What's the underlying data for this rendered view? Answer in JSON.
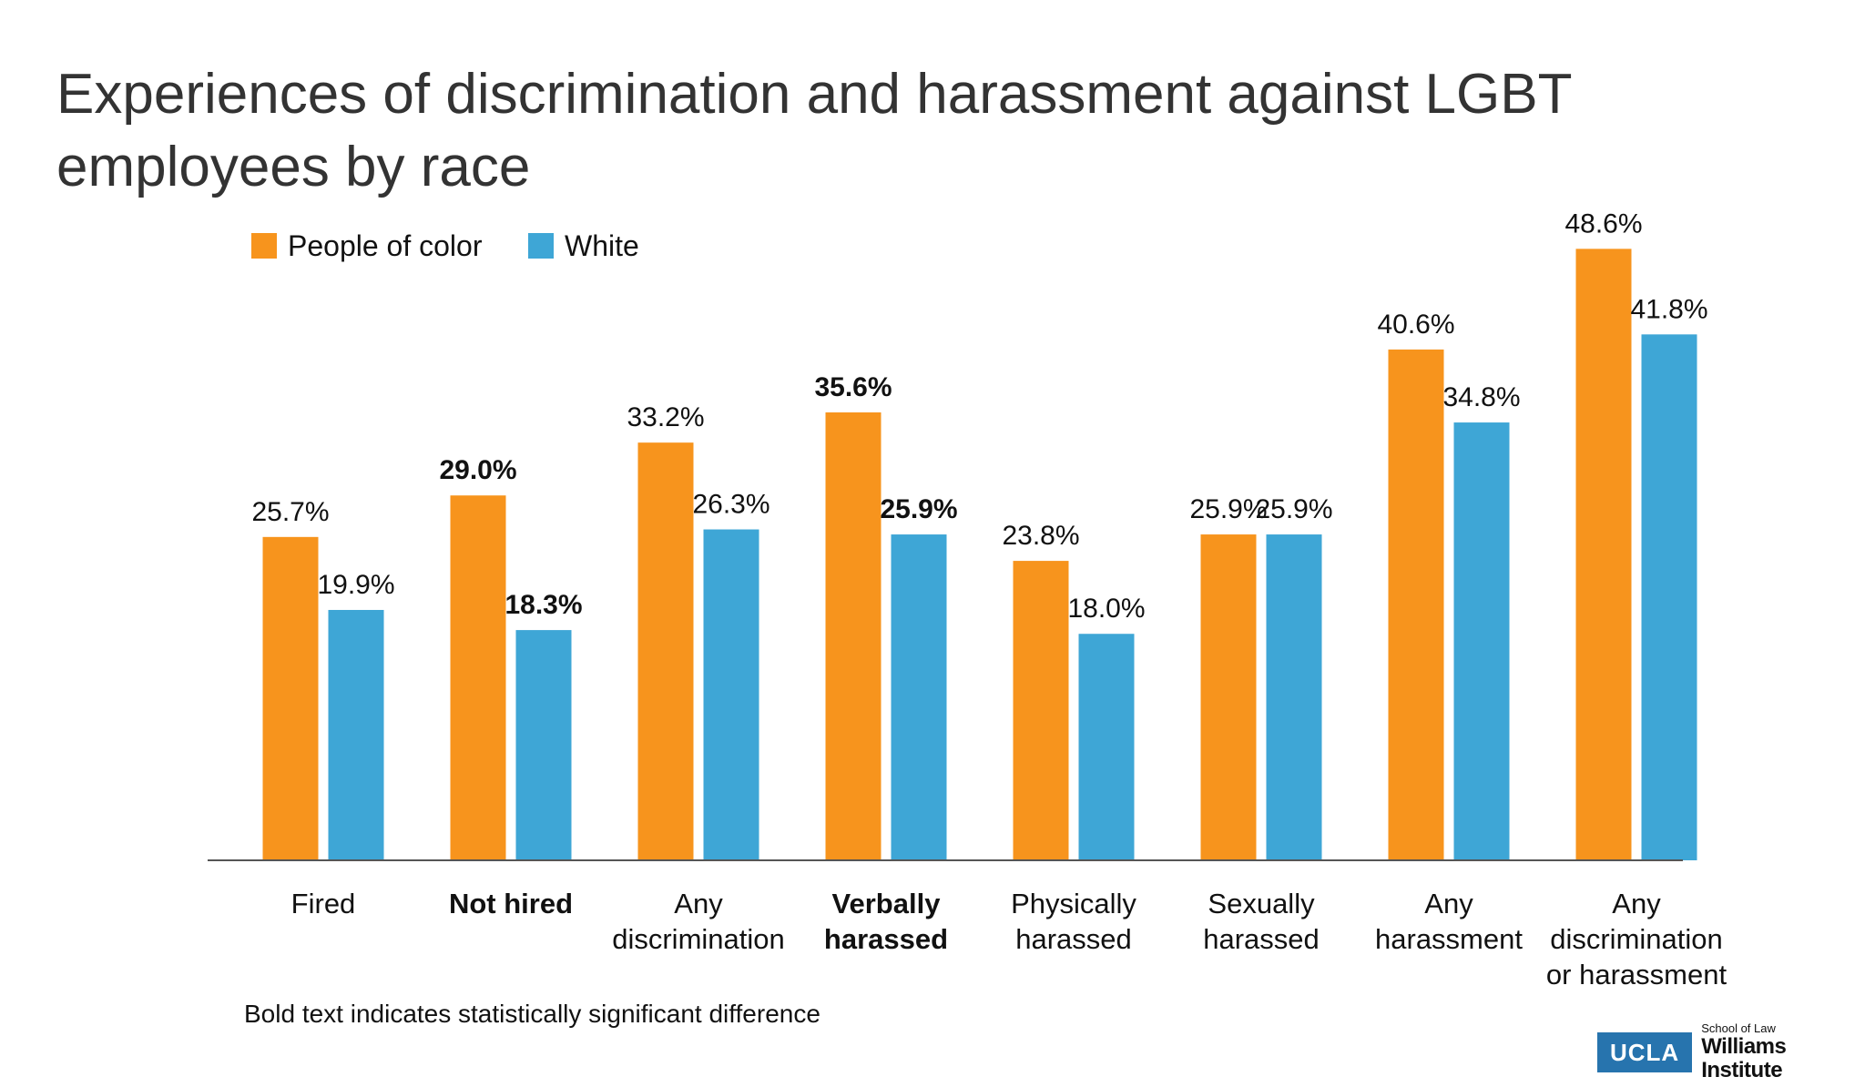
{
  "chart_data": {
    "type": "bar",
    "title": "Experiences of discrimination and harassment against LGBT employees by race",
    "categories": [
      [
        "Fired"
      ],
      [
        "Not hired"
      ],
      [
        "Any",
        "discrimination"
      ],
      [
        "Verbally",
        "harassed"
      ],
      [
        "Physically",
        "harassed"
      ],
      [
        "Sexually",
        "harassed"
      ],
      [
        "Any",
        "harassment"
      ],
      [
        "Any",
        "discrimination",
        "or harassment"
      ]
    ],
    "significant": [
      false,
      true,
      false,
      true,
      false,
      false,
      false,
      false
    ],
    "series": [
      {
        "name": "People of color",
        "color": "#f7941d",
        "values": [
          25.7,
          29.0,
          33.2,
          35.6,
          23.8,
          25.9,
          40.6,
          48.6
        ],
        "labels": [
          "25.7%",
          "29.0%",
          "33.2%",
          "35.6%",
          "23.8%",
          "25.9%",
          "40.6%",
          "48.6%"
        ]
      },
      {
        "name": "White",
        "color": "#3ea6d6",
        "values": [
          19.9,
          18.3,
          26.3,
          25.9,
          18.0,
          25.9,
          34.8,
          41.8
        ],
        "labels": [
          "19.9%",
          "18.3%",
          "26.3%",
          "25.9%",
          "18.0%",
          "25.9%",
          "34.8%",
          "41.8%"
        ]
      }
    ],
    "ylim": [
      0,
      60
    ],
    "grid": false,
    "legend_position": "top-left",
    "xlabel": "",
    "ylabel": ""
  },
  "footnote": "Bold text indicates statistically significant difference",
  "logo": {
    "box_text": "UCLA",
    "school": "School of Law",
    "institute": "Williams Institute"
  }
}
